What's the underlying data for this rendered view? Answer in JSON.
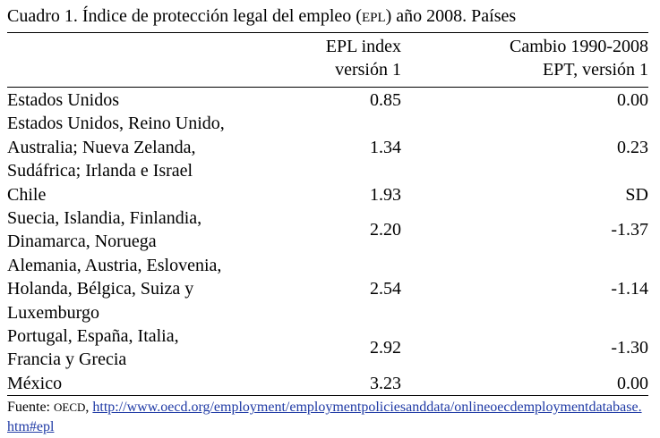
{
  "caption": {
    "prefix": "Cuadro 1. Índice de protección legal del empleo (",
    "abbr": "EPL",
    "suffix": ") año 2008. Países"
  },
  "headers": {
    "col2_line1": "EPL index",
    "col2_line2": "versión 1",
    "col3_line1": "Cambio 1990-2008",
    "col3_line2": "EPT, versión 1"
  },
  "rows": [
    {
      "country_lines": [
        "Estados Unidos"
      ],
      "epl": "0.85",
      "change": "0.00"
    },
    {
      "country_lines": [
        "Estados Unidos, Reino Unido,",
        "Australia; Nueva Zelanda,",
        "Sudáfrica; Irlanda e Israel"
      ],
      "epl": "1.34",
      "change": "0.23"
    },
    {
      "country_lines": [
        "Chile"
      ],
      "epl": "1.93",
      "change": "SD"
    },
    {
      "country_lines": [
        "Suecia, Islandia, Finlandia,",
        "Dinamarca, Noruega"
      ],
      "epl": "2.20",
      "change": "-1.37"
    },
    {
      "country_lines": [
        "Alemania, Austria, Eslovenia,",
        "Holanda, Bélgica, Suiza y",
        "Luxemburgo"
      ],
      "epl": "2.54",
      "change": "-1.14"
    },
    {
      "country_lines": [
        "Portugal, España, Italia,",
        "Francia  y Grecia"
      ],
      "epl": "2.92",
      "change": "-1.30"
    },
    {
      "country_lines": [
        "México"
      ],
      "epl": "3.23",
      "change": "0.00"
    }
  ],
  "source": {
    "label": "Fuente: ",
    "org": "OECD",
    "sep": ", ",
    "url": "http://www.oecd.org/employment/employmentpoliciesanddata/onlineoecdemploymentdatabase.htm#epl"
  },
  "colors": {
    "text": "#000000",
    "link": "#1f3aa5",
    "rule": "#000000"
  }
}
